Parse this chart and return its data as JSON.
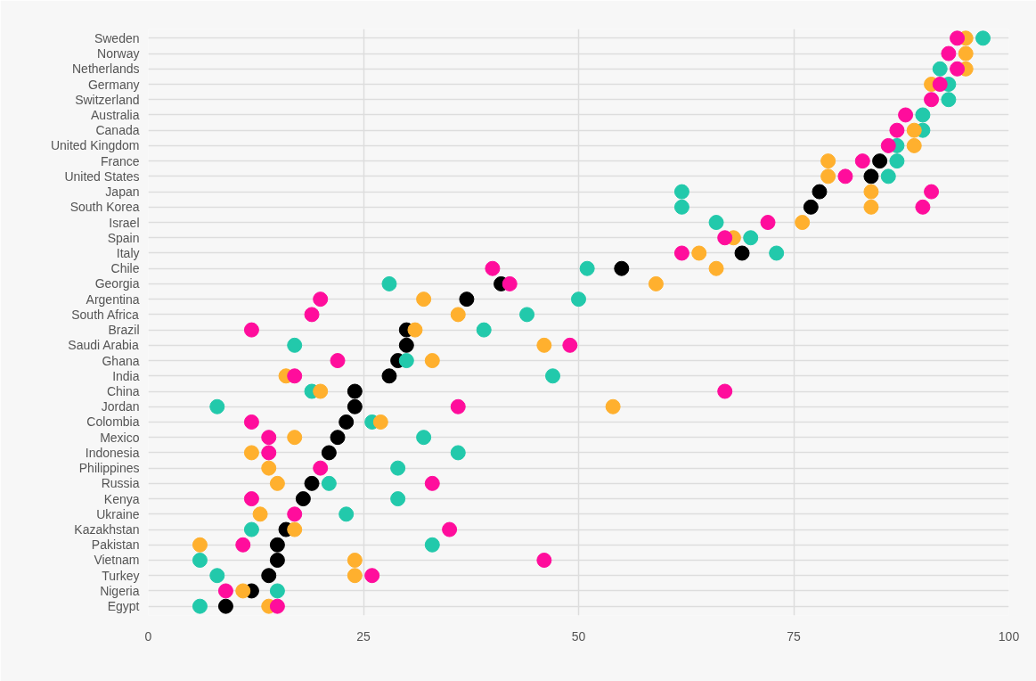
{
  "chart_data": {
    "type": "scatter",
    "orientation": "horizontal",
    "marker": "circle",
    "grid": true,
    "categories": [
      "Sweden",
      "Norway",
      "Netherlands",
      "Germany",
      "Switzerland",
      "Australia",
      "Canada",
      "United Kingdom",
      "France",
      "United States",
      "Japan",
      "South Korea",
      "Israel",
      "Spain",
      "Italy",
      "Chile",
      "Georgia",
      "Argentina",
      "South Africa",
      "Brazil",
      "Saudi Arabia",
      "Ghana",
      "India",
      "China",
      "Jordan",
      "Colombia",
      "Mexico",
      "Indonesia",
      "Philippines",
      "Russia",
      "Kenya",
      "Ukraine",
      "Kazakhstan",
      "Pakistan",
      "Vietnam",
      "Turkey",
      "Nigeria",
      "Egypt"
    ],
    "xlim": [
      0,
      100
    ],
    "xticks": [
      0,
      25,
      50,
      75,
      100
    ],
    "series": [
      {
        "color": "#000000",
        "values": [
          null,
          null,
          null,
          null,
          null,
          null,
          null,
          null,
          85,
          84,
          78,
          77,
          null,
          null,
          69,
          55,
          41,
          37,
          null,
          30,
          30,
          29,
          28,
          24,
          24,
          23,
          22,
          21,
          null,
          19,
          18,
          null,
          16,
          15,
          15,
          14,
          12,
          9
        ]
      },
      {
        "color": "#22c9ab",
        "values": [
          97,
          null,
          92,
          93,
          93,
          90,
          90,
          87,
          87,
          86,
          62,
          62,
          66,
          70,
          73,
          51,
          28,
          50,
          44,
          39,
          17,
          30,
          47,
          19,
          8,
          26,
          32,
          36,
          29,
          21,
          29,
          23,
          12,
          33,
          6,
          8,
          15,
          6
        ]
      },
      {
        "color": "#ffb02e",
        "values": [
          95,
          95,
          95,
          91,
          null,
          null,
          89,
          89,
          79,
          79,
          84,
          84,
          76,
          68,
          64,
          66,
          59,
          32,
          36,
          31,
          46,
          33,
          16,
          20,
          54,
          27,
          17,
          12,
          14,
          15,
          null,
          13,
          17,
          6,
          24,
          24,
          11,
          14
        ]
      },
      {
        "color": "#ff0d9c",
        "values": [
          94,
          93,
          94,
          92,
          91,
          88,
          87,
          86,
          83,
          81,
          91,
          90,
          72,
          67,
          62,
          40,
          42,
          20,
          19,
          12,
          49,
          22,
          17,
          67,
          36,
          12,
          14,
          14,
          20,
          33,
          12,
          17,
          35,
          11,
          46,
          26,
          9,
          15
        ]
      }
    ]
  }
}
